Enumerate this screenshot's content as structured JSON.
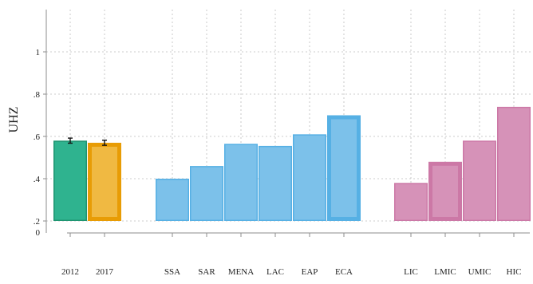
{
  "chart_data": {
    "type": "bar",
    "title": "",
    "xlabel": "",
    "ylabel": "UHZ",
    "ylim": [
      0,
      1
    ],
    "yticks": [
      {
        "value": 0,
        "label": "0"
      },
      {
        "value": 0.2,
        "label": ".2"
      },
      {
        "value": 0.4,
        "label": ".4"
      },
      {
        "value": 0.6,
        "label": ".6"
      },
      {
        "value": 0.8,
        "label": ".8"
      },
      {
        "value": 1,
        "label": "1"
      }
    ],
    "grid": true,
    "legend": "none",
    "groups": [
      {
        "bars": [
          {
            "label": "2012",
            "value": 0.58,
            "error": 0.012,
            "fill": "#2fb38f",
            "stroke": "#1e9470",
            "highlight": false
          },
          {
            "label": "2017",
            "value": 0.57,
            "error": 0.012,
            "fill": "#f0b942",
            "stroke": "#e89c05",
            "highlight": true
          }
        ]
      },
      {
        "bars": [
          {
            "label": "SSA",
            "value": 0.4,
            "fill": "#7cc1ea",
            "stroke": "#56b0e4",
            "highlight": false
          },
          {
            "label": "SAR",
            "value": 0.46,
            "fill": "#7cc1ea",
            "stroke": "#56b0e4",
            "highlight": false
          },
          {
            "label": "MENA",
            "value": 0.565,
            "fill": "#7cc1ea",
            "stroke": "#56b0e4",
            "highlight": false
          },
          {
            "label": "LAC",
            "value": 0.555,
            "fill": "#7cc1ea",
            "stroke": "#56b0e4",
            "highlight": false
          },
          {
            "label": "EAP",
            "value": 0.61,
            "fill": "#7cc1ea",
            "stroke": "#56b0e4",
            "highlight": false
          },
          {
            "label": "ECA",
            "value": 0.7,
            "fill": "#7cc1ea",
            "stroke": "#56b0e4",
            "highlight": true
          }
        ]
      },
      {
        "bars": [
          {
            "label": "LIC",
            "value": 0.38,
            "fill": "#d692b8",
            "stroke": "#cc78a6",
            "highlight": false
          },
          {
            "label": "LMIC",
            "value": 0.48,
            "fill": "#d692b8",
            "stroke": "#cc78a6",
            "highlight": true
          },
          {
            "label": "UMIC",
            "value": 0.58,
            "fill": "#d692b8",
            "stroke": "#cc78a6",
            "highlight": false
          },
          {
            "label": "HIC",
            "value": 0.74,
            "fill": "#d692b8",
            "stroke": "#cc78a6",
            "highlight": false
          }
        ]
      }
    ]
  }
}
